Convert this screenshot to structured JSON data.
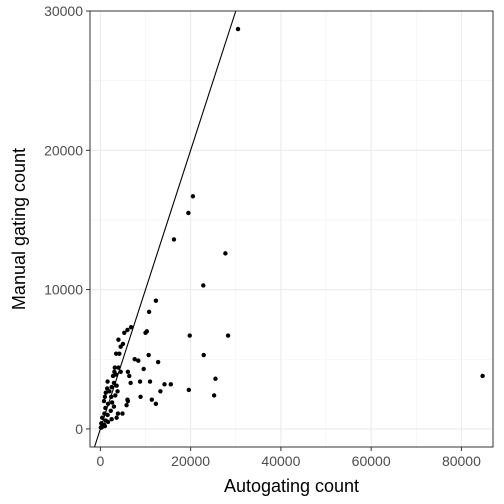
{
  "chart_data": {
    "type": "scatter",
    "title": "",
    "xlabel": "Autogating count",
    "ylabel": "Manual gating count",
    "xlim": [
      -2300,
      87000
    ],
    "ylim": [
      -1300,
      30000
    ],
    "xticks": [
      0,
      20000,
      40000,
      60000,
      80000
    ],
    "yticks": [
      0,
      10000,
      20000,
      30000
    ],
    "x_tick_labels": [
      "0",
      "20000",
      "40000",
      "60000",
      "80000"
    ],
    "y_tick_labels": [
      "0",
      "10000",
      "20000",
      "30000"
    ],
    "grid": true,
    "legend": "none",
    "reference_line": {
      "type": "abline",
      "slope": 1,
      "intercept": 0
    },
    "points": [
      [
        30500,
        28700
      ],
      [
        20500,
        16700
      ],
      [
        19500,
        15500
      ],
      [
        16300,
        13600
      ],
      [
        27700,
        12600
      ],
      [
        22800,
        10300
      ],
      [
        12300,
        9200
      ],
      [
        10800,
        8400
      ],
      [
        10300,
        7000
      ],
      [
        10000,
        6900
      ],
      [
        6000,
        7100
      ],
      [
        5300,
        6900
      ],
      [
        6800,
        7300
      ],
      [
        4000,
        6400
      ],
      [
        5000,
        6100
      ],
      [
        19800,
        6700
      ],
      [
        28300,
        6700
      ],
      [
        3500,
        5400
      ],
      [
        4200,
        5400
      ],
      [
        4500,
        5900
      ],
      [
        10700,
        5300
      ],
      [
        22900,
        5300
      ],
      [
        7600,
        5000
      ],
      [
        8400,
        4900
      ],
      [
        12800,
        4800
      ],
      [
        3200,
        4400
      ],
      [
        4000,
        4400
      ],
      [
        3100,
        4100
      ],
      [
        4500,
        4100
      ],
      [
        9600,
        4300
      ],
      [
        6100,
        4100
      ],
      [
        2800,
        3800
      ],
      [
        3500,
        3900
      ],
      [
        6400,
        3800
      ],
      [
        25500,
        3600
      ],
      [
        84700,
        3800
      ],
      [
        1600,
        3400
      ],
      [
        3000,
        3300
      ],
      [
        6700,
        3300
      ],
      [
        8800,
        3400
      ],
      [
        11000,
        3400
      ],
      [
        14200,
        3200
      ],
      [
        15600,
        3200
      ],
      [
        1500,
        2900
      ],
      [
        2500,
        3000
      ],
      [
        3600,
        3100
      ],
      [
        1200,
        2600
      ],
      [
        2000,
        2700
      ],
      [
        3800,
        2700
      ],
      [
        13300,
        2700
      ],
      [
        19600,
        2800
      ],
      [
        1000,
        2300
      ],
      [
        2400,
        2300
      ],
      [
        3300,
        2400
      ],
      [
        6100,
        2000
      ],
      [
        8900,
        2300
      ],
      [
        11400,
        2100
      ],
      [
        25200,
        2400
      ],
      [
        800,
        2000
      ],
      [
        1700,
        1800
      ],
      [
        2600,
        1900
      ],
      [
        12300,
        1800
      ],
      [
        1100,
        1500
      ],
      [
        2300,
        1300
      ],
      [
        3000,
        1600
      ],
      [
        5800,
        1700
      ],
      [
        900,
        1100
      ],
      [
        1600,
        1000
      ],
      [
        3900,
        1100
      ],
      [
        4900,
        1100
      ],
      [
        400,
        800
      ],
      [
        1200,
        600
      ],
      [
        2500,
        700
      ],
      [
        3600,
        800
      ],
      [
        200,
        400
      ],
      [
        800,
        300
      ],
      [
        1700,
        500
      ],
      [
        100,
        100
      ],
      [
        300,
        100
      ],
      [
        500,
        200
      ],
      [
        1000,
        200
      ],
      [
        6000,
        2100
      ]
    ]
  }
}
